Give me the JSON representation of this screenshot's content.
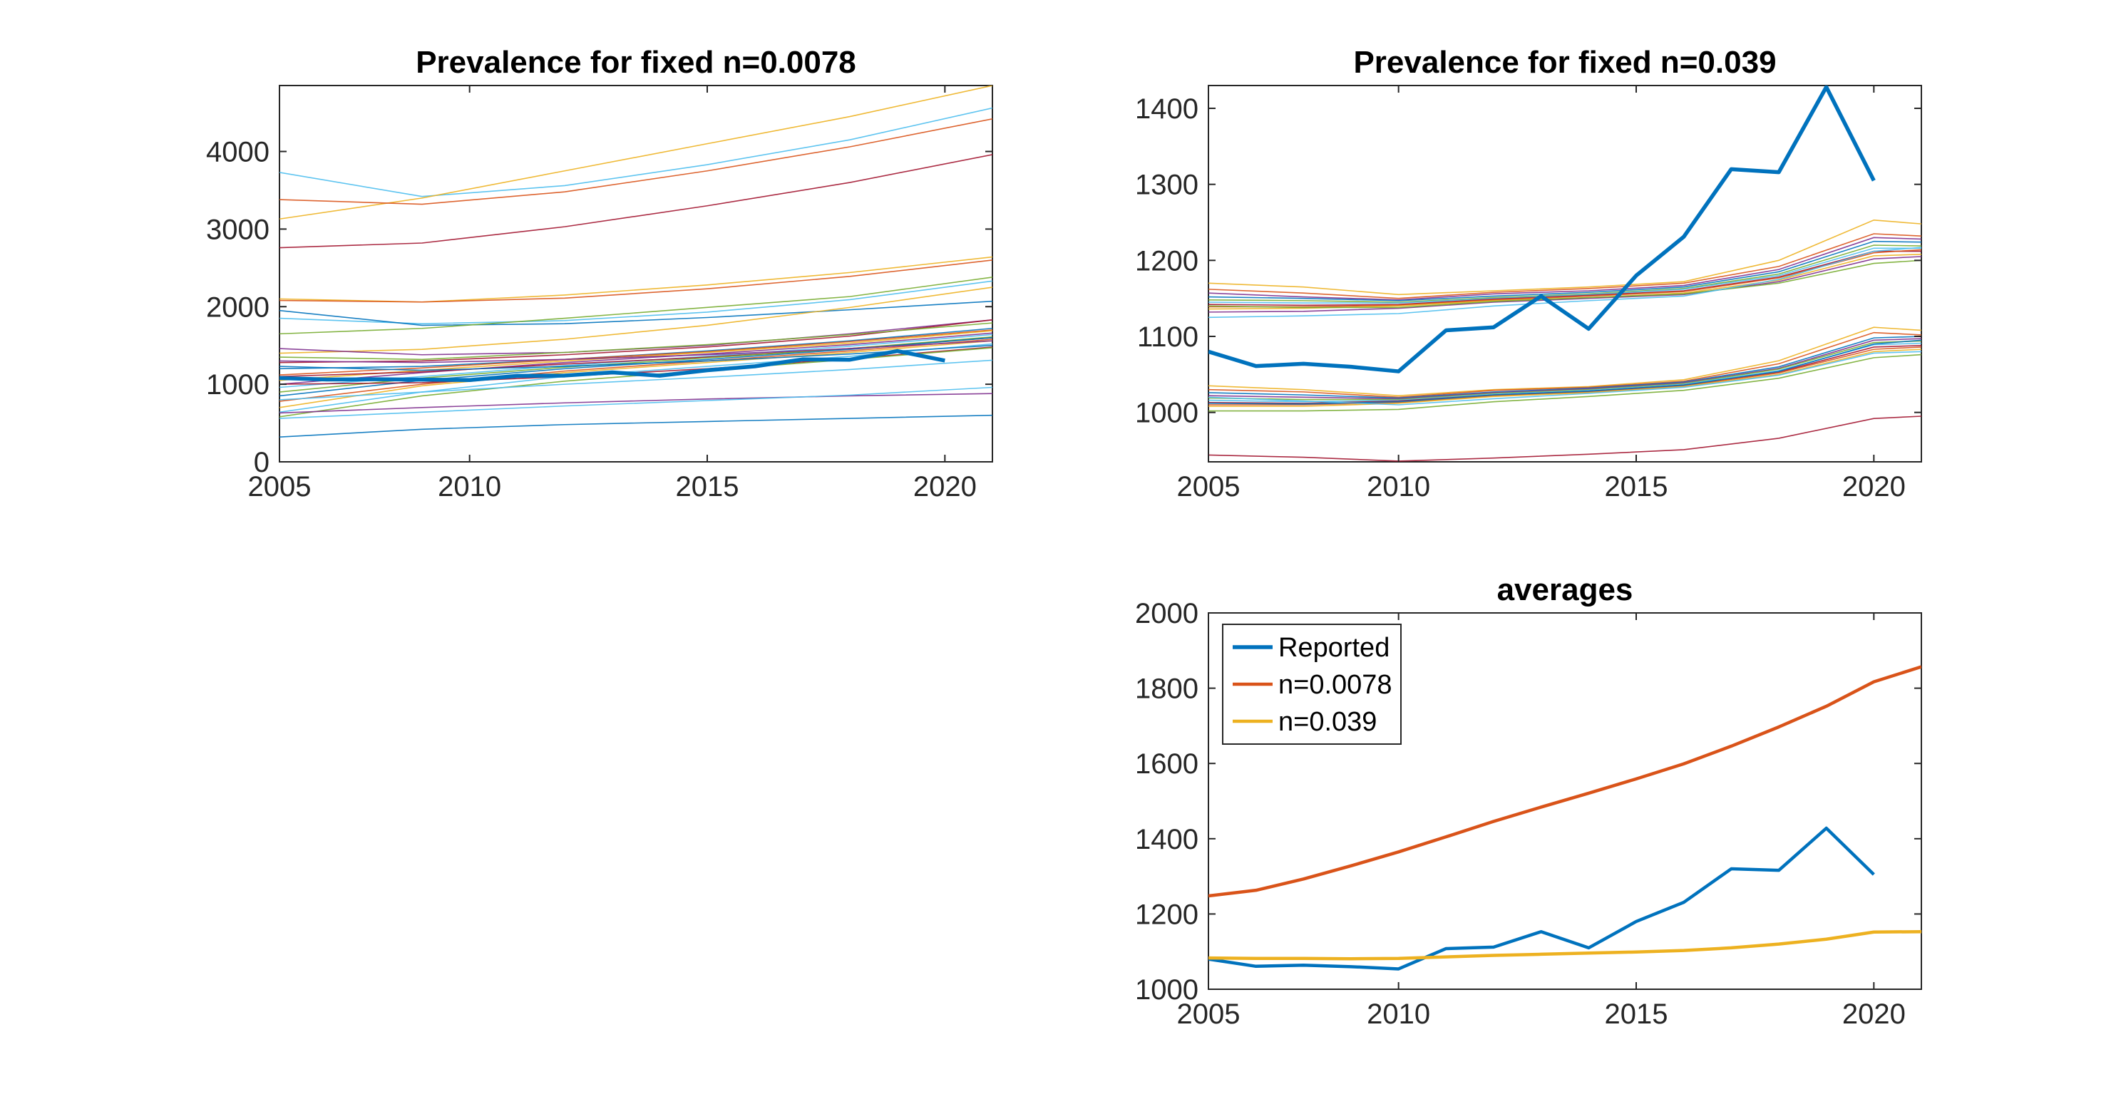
{
  "palette": [
    "#0072BD",
    "#D95319",
    "#EDB120",
    "#7E2F8E",
    "#77AC30",
    "#4DBEEE",
    "#A2142F"
  ],
  "chart_data": [
    {
      "id": "left",
      "type": "line",
      "title": "Prevalence for fixed n=0.0078",
      "xlabel": "",
      "ylabel": "",
      "xlim": [
        2006,
        2021
      ],
      "ylim": [
        0,
        4850
      ],
      "xticks": [
        2005,
        2010,
        2015,
        2020
      ],
      "yticks": [
        0,
        1000,
        2000,
        3000,
        4000
      ],
      "grid": false,
      "ensemble": {
        "x": [
          2006,
          2009,
          2012,
          2015,
          2018,
          2021
        ],
        "description_lines": 50,
        "curves": [
          {
            "color": "#4DBEEE",
            "values": [
              3730,
              3420,
              3560,
              3830,
              4150,
              4560
            ]
          },
          {
            "color": "#EDB120",
            "values": [
              3130,
              3400,
              3750,
              4100,
              4450,
              4850
            ]
          },
          {
            "color": "#D95319",
            "values": [
              3380,
              3320,
              3480,
              3750,
              4060,
              4420
            ]
          },
          {
            "color": "#A2142F",
            "values": [
              2760,
              2820,
              3030,
              3300,
              3600,
              3960
            ]
          },
          {
            "color": "#EDB120",
            "values": [
              2100,
              2060,
              2150,
              2280,
              2440,
              2640
            ]
          },
          {
            "color": "#D95319",
            "values": [
              2080,
              2060,
              2110,
              2230,
              2390,
              2600
            ]
          },
          {
            "color": "#4DBEEE",
            "values": [
              1850,
              1780,
              1820,
              1930,
              2090,
              2330
            ]
          },
          {
            "color": "#0072BD",
            "values": [
              1950,
              1760,
              1780,
              1860,
              1960,
              2070
            ]
          },
          {
            "color": "#77AC30",
            "values": [
              1650,
              1720,
              1850,
              1990,
              2130,
              2380
            ]
          },
          {
            "color": "#EDB120",
            "values": [
              1400,
              1450,
              1580,
              1760,
              1990,
              2250
            ]
          },
          {
            "color": "#7E2F8E",
            "values": [
              1460,
              1380,
              1410,
              1500,
              1650,
              1830
            ]
          },
          {
            "color": "#A2142F",
            "values": [
              1280,
              1300,
              1380,
              1480,
              1620,
              1830
            ]
          },
          {
            "color": "#77AC30",
            "values": [
              1350,
              1320,
              1410,
              1510,
              1640,
              1790
            ]
          },
          {
            "color": "#0072BD",
            "values": [
              1200,
              1230,
              1320,
              1430,
              1560,
              1720
            ]
          },
          {
            "color": "#D95319",
            "values": [
              1120,
              1210,
              1320,
              1420,
              1550,
              1700
            ]
          },
          {
            "color": "#EDB120",
            "values": [
              1050,
              1180,
              1300,
              1410,
              1530,
              1690
            ]
          },
          {
            "color": "#7E2F8E",
            "values": [
              1000,
              1150,
              1280,
              1390,
              1510,
              1660
            ]
          },
          {
            "color": "#4DBEEE",
            "values": [
              960,
              1100,
              1240,
              1360,
              1490,
              1640
            ]
          },
          {
            "color": "#A2142F",
            "values": [
              1100,
              1160,
              1260,
              1350,
              1460,
              1600
            ]
          },
          {
            "color": "#77AC30",
            "values": [
              900,
              1080,
              1220,
              1340,
              1460,
              1610
            ]
          },
          {
            "color": "#0072BD",
            "values": [
              850,
              1050,
              1200,
              1320,
              1450,
              1600
            ]
          },
          {
            "color": "#D95319",
            "values": [
              780,
              1000,
              1170,
              1300,
              1430,
              1580
            ]
          },
          {
            "color": "#EDB120",
            "values": [
              700,
              980,
              1150,
              1280,
              1410,
              1560
            ]
          },
          {
            "color": "#7E2F8E",
            "values": [
              1300,
              1280,
              1320,
              1380,
              1460,
              1560
            ]
          },
          {
            "color": "#4DBEEE",
            "values": [
              640,
              900,
              1100,
              1230,
              1360,
              1520
            ]
          },
          {
            "color": "#A2142F",
            "values": [
              1000,
              1020,
              1100,
              1200,
              1330,
              1480
            ]
          },
          {
            "color": "#77AC30",
            "values": [
              580,
              850,
              1040,
              1180,
              1320,
              1470
            ]
          },
          {
            "color": "#0072BD",
            "values": [
              1230,
              1180,
              1230,
              1300,
              1390,
              1500
            ]
          },
          {
            "color": "#4DBEEE",
            "values": [
              800,
              900,
              1000,
              1090,
              1190,
              1310
            ]
          },
          {
            "color": "#7E2F8E",
            "values": [
              630,
              700,
              760,
              810,
              850,
              880
            ]
          },
          {
            "color": "#4DBEEE",
            "values": [
              560,
              640,
              720,
              790,
              860,
              960
            ]
          },
          {
            "color": "#0072BD",
            "values": [
              320,
              420,
              480,
              520,
              560,
              600
            ]
          }
        ]
      },
      "series": [
        {
          "name": "",
          "role": "reported",
          "color": "#0072BD",
          "x": [
            2006,
            2007,
            2008,
            2009,
            2010,
            2011,
            2012,
            2013,
            2014,
            2015,
            2016,
            2017,
            2018,
            2019,
            2020
          ],
          "values": [
            1080,
            1061,
            1064,
            1060,
            1054,
            1108,
            1112,
            1153,
            1110,
            1180,
            1231,
            1320,
            1316,
            1428,
            1305
          ]
        }
      ]
    },
    {
      "id": "top-right",
      "type": "line",
      "title": "Prevalence for fixed n=0.039",
      "xlabel": "",
      "ylabel": "",
      "xlim": [
        2006,
        2021
      ],
      "ylim": [
        935,
        1430
      ],
      "xticks": [
        2005,
        2010,
        2015,
        2020
      ],
      "yticks": [
        1000,
        1100,
        1200,
        1300,
        1400
      ],
      "grid": false,
      "ensemble": {
        "x": [
          2006,
          2008,
          2010,
          2012,
          2014,
          2016,
          2018,
          2020,
          2021
        ],
        "curves": [
          {
            "color": "#EDB120",
            "values": [
              1170,
              1165,
              1155,
              1160,
              1165,
              1172,
              1200,
              1253,
              1248
            ]
          },
          {
            "color": "#D95319",
            "values": [
              1162,
              1157,
              1150,
              1158,
              1163,
              1170,
              1192,
              1235,
              1232
            ]
          },
          {
            "color": "#7E2F8E",
            "values": [
              1157,
              1152,
              1148,
              1156,
              1160,
              1167,
              1188,
              1230,
              1228
            ]
          },
          {
            "color": "#0072BD",
            "values": [
              1152,
              1150,
              1147,
              1153,
              1158,
              1165,
              1185,
              1225,
              1224
            ]
          },
          {
            "color": "#77AC30",
            "values": [
              1148,
              1147,
              1145,
              1151,
              1156,
              1163,
              1182,
              1220,
              1219
            ]
          },
          {
            "color": "#4DBEEE",
            "values": [
              1145,
              1144,
              1144,
              1150,
              1155,
              1162,
              1180,
              1216,
              1216
            ]
          },
          {
            "color": "#A2142F",
            "values": [
              1142,
              1141,
              1142,
              1149,
              1154,
              1160,
              1178,
              1212,
              1212
            ]
          },
          {
            "color": "#D95319",
            "values": [
              1139,
              1139,
              1141,
              1148,
              1153,
              1159,
              1177,
              1210,
              1214
            ]
          },
          {
            "color": "#EDB120",
            "values": [
              1136,
              1137,
              1140,
              1147,
              1151,
              1157,
              1174,
              1206,
              1208
            ]
          },
          {
            "color": "#7E2F8E",
            "values": [
              1132,
              1133,
              1137,
              1145,
              1150,
              1155,
              1172,
              1202,
              1205
            ]
          },
          {
            "color": "#77AC30",
            "values": [
              1140,
              1138,
              1138,
              1146,
              1151,
              1156,
              1170,
              1196,
              1200
            ]
          },
          {
            "color": "#4DBEEE",
            "values": [
              1125,
              1127,
              1130,
              1140,
              1147,
              1153,
              1175,
              1212,
              1217
            ]
          },
          {
            "color": "#EDB120",
            "values": [
              1035,
              1030,
              1022,
              1030,
              1034,
              1043,
              1068,
              1112,
              1108
            ]
          },
          {
            "color": "#D95319",
            "values": [
              1030,
              1027,
              1020,
              1029,
              1033,
              1041,
              1064,
              1105,
              1102
            ]
          },
          {
            "color": "#0072BD",
            "values": [
              1026,
              1023,
              1019,
              1027,
              1032,
              1040,
              1060,
              1098,
              1100
            ]
          },
          {
            "color": "#7E2F8E",
            "values": [
              1022,
              1020,
              1018,
              1026,
              1031,
              1039,
              1058,
              1095,
              1097
            ]
          },
          {
            "color": "#77AC30",
            "values": [
              1019,
              1017,
              1017,
              1025,
              1030,
              1038,
              1057,
              1092,
              1094
            ]
          },
          {
            "color": "#4DBEEE",
            "values": [
              1016,
              1014,
              1016,
              1024,
              1029,
              1037,
              1055,
              1089,
              1091
            ]
          },
          {
            "color": "#A2142F",
            "values": [
              1013,
              1012,
              1015,
              1023,
              1028,
              1036,
              1053,
              1086,
              1088
            ]
          },
          {
            "color": "#D95319",
            "values": [
              1010,
              1010,
              1013,
              1022,
              1027,
              1035,
              1052,
              1083,
              1086
            ]
          },
          {
            "color": "#EDB120",
            "values": [
              1008,
              1008,
              1012,
              1021,
              1026,
              1034,
              1050,
              1080,
              1083
            ]
          },
          {
            "color": "#0072BD",
            "values": [
              1012,
              1011,
              1014,
              1023,
              1028,
              1036,
              1054,
              1090,
              1095
            ]
          },
          {
            "color": "#77AC30",
            "values": [
              1002,
              1002,
              1004,
              1014,
              1021,
              1029,
              1045,
              1072,
              1076
            ]
          },
          {
            "color": "#4DBEEE",
            "values": [
              1020,
              1015,
              1010,
              1018,
              1025,
              1033,
              1049,
              1078,
              1080
            ]
          },
          {
            "color": "#A2142F",
            "values": [
              944,
              941,
              936,
              940,
              945,
              951,
              966,
              992,
              995
            ]
          }
        ]
      },
      "series": [
        {
          "name": "",
          "role": "reported",
          "color": "#0072BD",
          "x": [
            2006,
            2007,
            2008,
            2009,
            2010,
            2011,
            2012,
            2013,
            2014,
            2015,
            2016,
            2017,
            2018,
            2019,
            2020
          ],
          "values": [
            1080,
            1061,
            1064,
            1060,
            1054,
            1108,
            1112,
            1153,
            1110,
            1180,
            1231,
            1320,
            1316,
            1428,
            1305
          ]
        }
      ]
    },
    {
      "id": "averages",
      "type": "line",
      "title": "averages",
      "xlabel": "",
      "ylabel": "",
      "xlim": [
        2006,
        2021
      ],
      "ylim": [
        1000,
        2000
      ],
      "xticks": [
        2005,
        2010,
        2015,
        2020
      ],
      "yticks": [
        1000,
        1200,
        1400,
        1600,
        1800,
        2000
      ],
      "grid": false,
      "legend": {
        "position": "top-left",
        "entries": [
          "Reported",
          "n=0.0078",
          "n=0.039"
        ]
      },
      "series": [
        {
          "name": "Reported",
          "color": "#0072BD",
          "x": [
            2006,
            2007,
            2008,
            2009,
            2010,
            2011,
            2012,
            2013,
            2014,
            2015,
            2016,
            2017,
            2018,
            2019,
            2020
          ],
          "values": [
            1080,
            1061,
            1064,
            1060,
            1054,
            1108,
            1112,
            1153,
            1110,
            1180,
            1231,
            1320,
            1316,
            1428,
            1305
          ]
        },
        {
          "name": "n=0.0078",
          "color": "#D95319",
          "x": [
            2006,
            2007,
            2008,
            2009,
            2010,
            2011,
            2012,
            2013,
            2014,
            2015,
            2016,
            2017,
            2018,
            2019,
            2020,
            2021
          ],
          "values": [
            1248,
            1263,
            1293,
            1328,
            1365,
            1405,
            1446,
            1484,
            1521,
            1559,
            1599,
            1646,
            1697,
            1752,
            1817,
            1857
          ]
        },
        {
          "name": "n=0.039",
          "color": "#EDB120",
          "x": [
            2006,
            2007,
            2008,
            2009,
            2010,
            2011,
            2012,
            2013,
            2014,
            2015,
            2016,
            2017,
            2018,
            2019,
            2020,
            2021
          ],
          "values": [
            1083,
            1082,
            1082,
            1081,
            1082,
            1086,
            1090,
            1093,
            1096,
            1099,
            1103,
            1110,
            1120,
            1133,
            1152,
            1153
          ]
        }
      ]
    }
  ]
}
